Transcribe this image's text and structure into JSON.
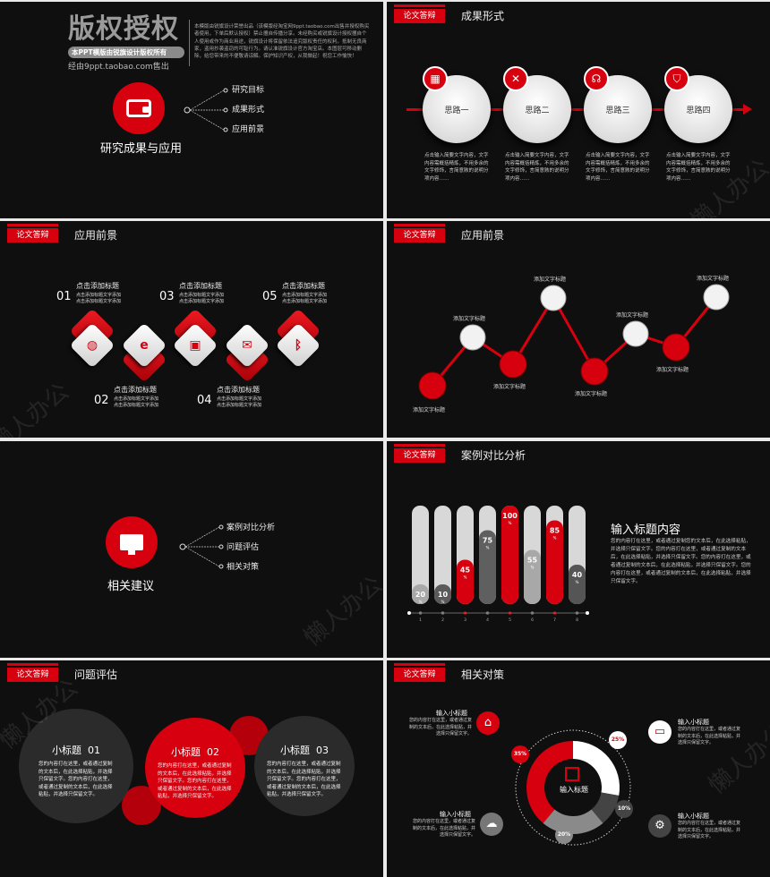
{
  "watermark": "懒人办公",
  "tag": "论文答辩",
  "slide1": {
    "logo_title": "版权授权",
    "logo_pill": "本PPT模版由锐旗设计版权所有",
    "logo_sub": "经由9ppt.taobao.com售出",
    "notice": "本模版由锐旗设计荣誉出品（该模版经淘宝网9ppt.taobao.com出售并授权购买者使用，下单后默认授权）禁止擅自传播分享。未经购买或锐旗设计授权擅自个人使用或作为商业用途，锐旗设计将保留依法追究版权责任的权利。抵制无良商家，盗用抄袭盗窃的可耻行为。请认准锐旗设计官方淘宝店。本图层可移动删除，给您带来的不便敬请谅解。保护知识产权，从我做起！祝您工作愉快！",
    "title": "研究成果与应用",
    "items": [
      "研究目标",
      "成果形式",
      "应用前景"
    ],
    "icon": "wallet-icon"
  },
  "slide2": {
    "title": "成果形式",
    "steps": [
      {
        "label": "思路一",
        "icon": "calendar-icon"
      },
      {
        "label": "思路二",
        "icon": "tools-icon"
      },
      {
        "label": "思路三",
        "icon": "headset-icon"
      },
      {
        "label": "思路四",
        "icon": "shield-icon"
      }
    ],
    "desc": "点击输入简要文字内容，文字内容需概括精炼，不用多余的文字修饰，言简意赅的说明分项内容……"
  },
  "slide3": {
    "title": "应用前景",
    "items": [
      {
        "num": "01",
        "title": "点击添加标题",
        "line1": "点击添加标题文字添加",
        "line2": "点击添加标题文字添加",
        "icon": "globe-icon"
      },
      {
        "num": "02",
        "title": "点击添加标题",
        "line1": "点击添加标题文字添加",
        "line2": "点击添加标题文字添加",
        "icon": "browser-icon"
      },
      {
        "num": "03",
        "title": "点击添加标题",
        "line1": "点击添加标题文字添加",
        "line2": "点击添加标题文字添加",
        "icon": "image-icon"
      },
      {
        "num": "04",
        "title": "点击添加标题",
        "line1": "点击添加标题文字添加",
        "line2": "点击添加标题文字添加",
        "icon": "mail-icon"
      },
      {
        "num": "05",
        "title": "点击添加标题",
        "line1": "点击添加标题文字添加",
        "line2": "点击添加标题文字添加",
        "icon": "bluetooth-icon"
      }
    ]
  },
  "slide4": {
    "title": "应用前景",
    "point_label": "添加文字标题"
  },
  "slide5": {
    "title": "相关建议",
    "items": [
      "案例对比分析",
      "问题评估",
      "相关对策"
    ],
    "icon": "monitor-icon"
  },
  "slide6": {
    "title": "案例对比分析",
    "heading": "输入标题内容",
    "body": "您的内容打在这里，或者通过复制您的文本后，在此选择粘贴，并选择只保留文字。您的内容打在这里，或者通过复制的文本后，在此选择粘贴，并选择只保留文字。您的内容打在这里，或者通过复制的文本后，在此选择粘贴，并选择只保留文字。您的内容打在这里，或者通过复制的文本后，在此选择粘贴，并选择只保留文字。",
    "unit": "%"
  },
  "chart_data": {
    "type": "bar",
    "categories": [
      "1",
      "2",
      "3",
      "4",
      "5",
      "6",
      "7",
      "8"
    ],
    "values": [
      20,
      10,
      45,
      75,
      100,
      55,
      85,
      40
    ],
    "ylim": [
      0,
      100
    ],
    "colors": [
      "#a8a8a8",
      "#5a5a5a",
      "#d7000f",
      "#5f5f5f",
      "#d7000f",
      "#a8a8a8",
      "#d7000f",
      "#555555"
    ]
  },
  "slide7": {
    "title": "问题评估",
    "cards": [
      {
        "title": "小标题  01",
        "body": "您的内容打在这里，或者通过复制的文本后，在此选择粘贴，并选择只保留文字。您的内容打在这里，或者通过复制的文本后，在此选择粘贴，并选择只保留文字。"
      },
      {
        "title": "小标题  02",
        "body": "您的内容打在这里，或者通过复制的文本后，在此选择粘贴，并选择只保留文字。您的内容打在这里，或者通过复制的文本后，在此选择粘贴，并选择只保留文字。"
      },
      {
        "title": "小标题  03",
        "body": "您的内容打在这里，或者通过复制的文本后，在此选择粘贴，并选择只保留文字。您的内容打在这里，或者通过复制的文本后，在此选择粘贴，并选择只保留文字。"
      }
    ]
  },
  "slide8": {
    "title": "相关对策",
    "center": "输入标题",
    "subtitle": "输入小标题",
    "body": "您的内容打在这里，或者通过复制的文本后，在此选择粘贴，并选择只保留文字。",
    "segments": [
      {
        "label": "25%",
        "value": 25,
        "color": "#ffffff"
      },
      {
        "label": "10%",
        "value": 10,
        "color": "#444444"
      },
      {
        "label": "20%",
        "value": 20,
        "color": "#8a8a8a"
      },
      {
        "label": "35%",
        "value": 35,
        "color": "#d7000f"
      }
    ]
  }
}
